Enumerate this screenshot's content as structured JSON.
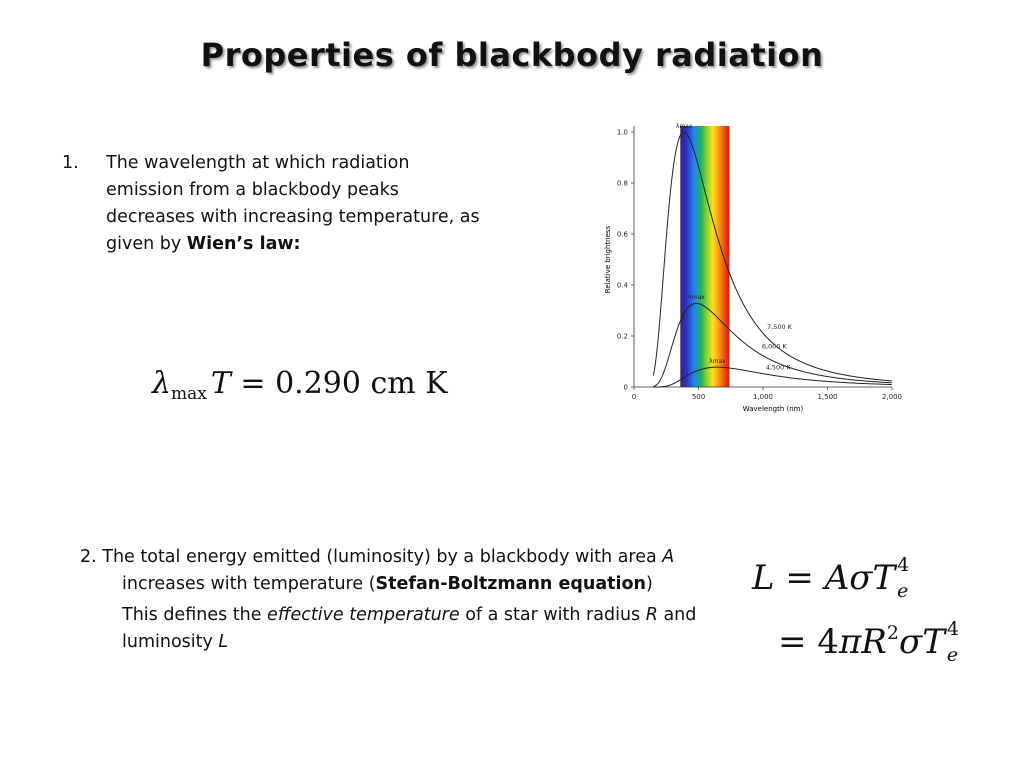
{
  "slide": {
    "title": "Properties of blackbody radiation",
    "point1": {
      "number": "1.",
      "text": "The wavelength at which radiation emission from a blackbody peaks decreases with increasing temperature, as given by ",
      "bold": "Wien’s law:"
    },
    "wien_equation": {
      "lambda": "λ",
      "sub": "max",
      "T": "T",
      "rest": " = 0.290 cm K"
    },
    "point2": {
      "prefix": "2. The total energy emitted (luminosity) by a blackbody with area ",
      "A": "A",
      "middle": " increases with temperature (",
      "bold": "Stefan-Boltzmann equation",
      "suffix": ")",
      "line2_a": "This defines the ",
      "line2_em": "effective temperature",
      "line2_b": " of a star with radius ",
      "R": "R",
      "line2_c": " and luminosity ",
      "L": "L"
    },
    "sb_equation": {
      "L": "L",
      "eq": " = ",
      "A": "A",
      "sigma": "σ",
      "T": "T",
      "exp": "4",
      "sub": "e",
      "line2_eq": "= 4",
      "pi": "π",
      "R": "R",
      "R_exp": "2"
    }
  },
  "chart_data": {
    "type": "line",
    "xlabel": "Wavelength (nm)",
    "ylabel": "Relative brightness",
    "xlim": [
      0,
      2000
    ],
    "ylim": [
      0,
      1.0
    ],
    "x_ticks": [
      "0",
      "500",
      "1,000",
      "1,500",
      "2,000"
    ],
    "y_ticks": [
      "0",
      "0.2",
      "0.4",
      "0.6",
      "0.8",
      "1.0"
    ],
    "visible_band_nm": [
      390,
      740
    ],
    "peak_label": "λmax",
    "series": [
      {
        "name": "7,500 K",
        "temperature": 7500,
        "peak_nm": 386,
        "peak_value": 1.0
      },
      {
        "name": "6,000 K",
        "temperature": 6000,
        "peak_nm": 483,
        "peak_value": 0.33
      },
      {
        "name": "4,500 K",
        "temperature": 4500,
        "peak_nm": 644,
        "peak_value": 0.078
      }
    ]
  }
}
